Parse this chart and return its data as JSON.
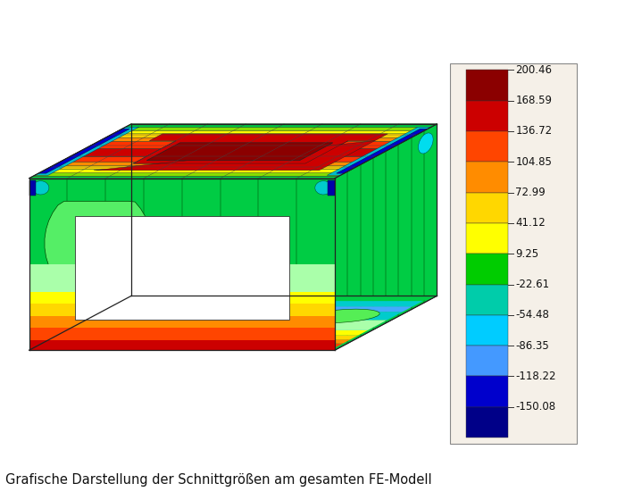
{
  "title": "Grafische Darstellung der Schnittgrößen am gesamten FE-Modell",
  "colorbar_values": [
    "200.46",
    "168.59",
    "136.72",
    "104.85",
    "72.99",
    "41.12",
    "9.25",
    "-22.61",
    "-54.48",
    "-86.35",
    "-118.22",
    "-150.08"
  ],
  "colorbar_colors": [
    "#8b0000",
    "#cc0000",
    "#ff4500",
    "#ff8c00",
    "#ffd700",
    "#ffff00",
    "#00cc00",
    "#00ccaa",
    "#00ccff",
    "#4499ff",
    "#0000cc",
    "#000088"
  ],
  "bg_color": "#ffffff",
  "legend_bg": "#f5f0e8",
  "fig_width": 7.0,
  "fig_height": 5.6
}
